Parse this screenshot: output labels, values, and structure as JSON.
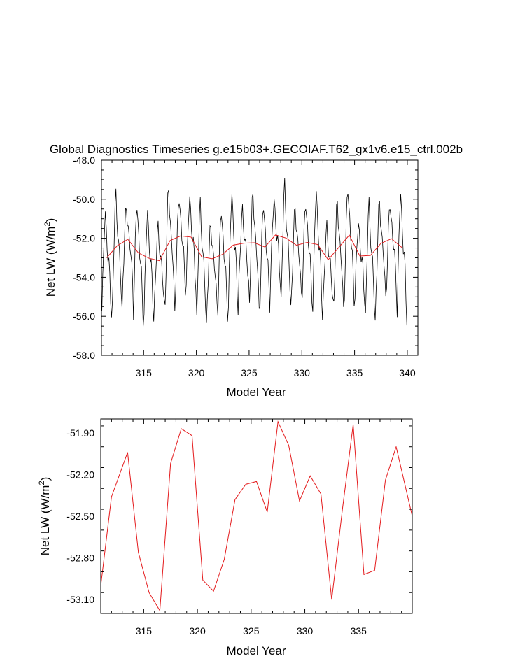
{
  "chart_data": [
    {
      "type": "line",
      "title": "Global Diagnostics Timeseries g.e15b03+.GECOIAF.T62_gx1v6.e15_ctrl.002b",
      "xlabel": "Model Year",
      "ylabel": "Net LW (W/m",
      "ylabel_sup": "2",
      "ylabel_close": ")",
      "xlim": [
        311.0,
        341.0
      ],
      "ylim": [
        -58.0,
        -48.0
      ],
      "x_ticks": [
        315,
        320,
        325,
        330,
        335,
        340
      ],
      "x_tick_labels": [
        "315",
        "320",
        "325",
        "330",
        "335",
        "340"
      ],
      "y_ticks": [
        -58,
        -56,
        -54,
        -52,
        -50,
        -48
      ],
      "y_tick_labels": [
        "-58.0",
        "-56.0",
        "-54.0",
        "-52.0",
        "-50.0",
        "-48.0"
      ],
      "series": [
        {
          "style": "monthly",
          "color": "#000000",
          "annual_cycle_offsets": [
            -2.7,
            -1.2,
            0.4,
            1.7,
            2.2,
            1.3,
            0.6,
            0.0,
            -0.3,
            -0.9,
            -2.0,
            -3.0
          ],
          "x_start": 311.04,
          "step": 0.08333
        },
        {
          "style": "annual",
          "color": "#e41a1c",
          "x": [
            311.5,
            312.5,
            313.5,
            314.5,
            315.5,
            316.5,
            317.5,
            318.5,
            319.5,
            320.5,
            321.5,
            322.5,
            323.5,
            324.5,
            325.5,
            326.5,
            327.5,
            328.5,
            329.5,
            330.5,
            331.5,
            332.5,
            333.5,
            334.5,
            335.5,
            336.5,
            337.5,
            338.5,
            339.5
          ],
          "values": [
            -53.0,
            -52.38,
            -52.05,
            -52.75,
            -53.02,
            -53.15,
            -52.12,
            -51.88,
            -51.94,
            -52.95,
            -53.05,
            -52.82,
            -52.35,
            -52.25,
            -52.23,
            -52.45,
            -51.83,
            -51.99,
            -52.36,
            -52.21,
            -52.32,
            -53.1,
            -52.47,
            -51.84,
            -52.91,
            -52.88,
            -52.26,
            -52.02,
            -52.48
          ]
        }
      ]
    },
    {
      "type": "line",
      "xlabel": "Model Year",
      "ylabel": "Net LW (W/m",
      "ylabel_sup": "2",
      "ylabel_close": ")",
      "xlim": [
        311.0,
        340.0
      ],
      "ylim": [
        -53.2,
        -51.8
      ],
      "x_ticks": [
        315,
        320,
        325,
        330,
        335
      ],
      "x_tick_labels": [
        "315",
        "320",
        "325",
        "330",
        "335"
      ],
      "y_ticks": [
        -53.1,
        -52.8,
        -52.5,
        -52.2,
        -51.9
      ],
      "y_tick_labels": [
        "-53.10",
        "-52.80",
        "-52.50",
        "-52.20",
        "-51.90"
      ],
      "series": [
        {
          "color": "#e41a1c",
          "x": [
            311.0,
            312.0,
            313.5,
            314.5,
            315.5,
            316.5,
            317.5,
            318.5,
            319.5,
            320.5,
            321.5,
            322.5,
            323.5,
            324.5,
            325.5,
            326.5,
            327.5,
            328.5,
            329.5,
            330.5,
            331.5,
            332.5,
            333.5,
            334.5,
            335.5,
            336.5,
            337.5,
            338.5,
            340.0
          ],
          "values": [
            -53.0,
            -52.36,
            -52.04,
            -52.76,
            -53.05,
            -53.18,
            -52.12,
            -51.87,
            -51.92,
            -52.96,
            -53.04,
            -52.81,
            -52.38,
            -52.27,
            -52.25,
            -52.47,
            -51.82,
            -51.99,
            -52.39,
            -52.21,
            -52.34,
            -53.1,
            -52.45,
            -51.84,
            -52.92,
            -52.89,
            -52.24,
            -52.0,
            -52.5
          ]
        }
      ]
    }
  ]
}
